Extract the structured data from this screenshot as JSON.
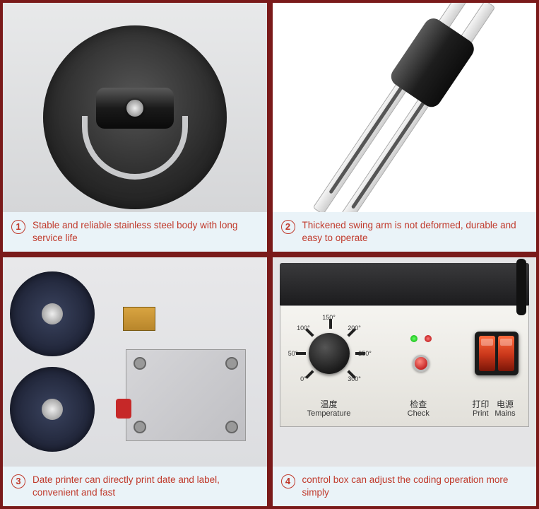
{
  "panels": [
    {
      "num": "1",
      "caption": "Stable and reliable stainless steel body with long service life"
    },
    {
      "num": "2",
      "caption": "Thickened swing arm is not deformed, durable and easy to operate"
    },
    {
      "num": "3",
      "caption": "Date printer can directly print date and label, convenient and fast"
    },
    {
      "num": "4",
      "caption": "control box can adjust the coding operation more simply"
    }
  ],
  "control_box": {
    "dial_markings": [
      "0°",
      "50°",
      "100°",
      "150°",
      "200°",
      "250°",
      "300°"
    ],
    "dial_angles": [
      -135,
      -90,
      -45,
      0,
      45,
      90,
      135
    ],
    "labels": {
      "temperature": {
        "cn": "温度",
        "en": "Temperature"
      },
      "check": {
        "cn": "检查",
        "en": "Check"
      },
      "print": {
        "cn": "打印",
        "en": "Print"
      },
      "mains": {
        "cn": "电源",
        "en": "Mains"
      }
    },
    "colors": {
      "rocker_on": "#ff6a3c",
      "led_green": "#00aa00",
      "led_red": "#aa0000",
      "face_bg": "#e2e0da"
    }
  },
  "frame_color": "#7a1a1a",
  "caption_color": "#c0392b",
  "caption_bg": "#eaf3f8"
}
